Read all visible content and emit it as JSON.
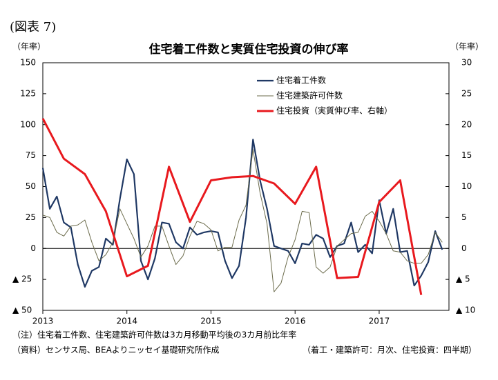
{
  "chart_data": {
    "type": "line",
    "figure_label": "(図表 7)",
    "title": "住宅着工件数と実質住宅投資の伸び率",
    "y_label": "（年率）",
    "y2_label": "（年率）",
    "notes": [
      "（注）住宅着工件数、住宅建築許可件数は3カ月移動平均後の3カ月前比年率",
      "（資料）センサス局、BEAよりニッセイ基礎研究所作成"
    ],
    "frequency_note": "（着工・建築許可：月次、住宅投資：四半期）",
    "xlim": [
      2013,
      2017.83
    ],
    "xticks": [
      2013,
      2014,
      2015,
      2016,
      2017
    ],
    "ylim": [
      -50,
      150
    ],
    "yticks": [
      150,
      125,
      100,
      75,
      50,
      25,
      0,
      {
        "value": -25,
        "label": "▲ 25"
      },
      {
        "value": -50,
        "label": "▲ 50"
      }
    ],
    "y2lim": [
      -10,
      30
    ],
    "y2ticks": [
      30,
      25,
      20,
      15,
      10,
      5,
      0,
      {
        "value": -5,
        "label": "▲ 5"
      },
      {
        "value": -10,
        "label": "▲ 10"
      }
    ],
    "grid": false,
    "legend": "top-right",
    "x": [
      2013,
      2013.0833,
      2013.1667,
      2013.25,
      2013.3333,
      2013.4167,
      2013.5,
      2013.5833,
      2013.6667,
      2013.75,
      2013.8333,
      2013.9167,
      2014,
      2014.0833,
      2014.1667,
      2014.25,
      2014.3333,
      2014.4167,
      2014.5,
      2014.5833,
      2014.6667,
      2014.75,
      2014.8333,
      2014.9167,
      2015,
      2015.0833,
      2015.1667,
      2015.25,
      2015.3333,
      2015.4167,
      2015.5,
      2015.5833,
      2015.6667,
      2015.75,
      2015.8333,
      2015.9167,
      2016,
      2016.0833,
      2016.1667,
      2016.25,
      2016.3333,
      2016.4167,
      2016.5,
      2016.5833,
      2016.6667,
      2016.75,
      2016.8333,
      2016.9167,
      2017,
      2017.0833,
      2017.1667,
      2017.25,
      2017.3333,
      2017.4167,
      2017.5,
      2017.5833,
      2017.6667,
      2017.75
    ],
    "series": [
      {
        "name": "住宅着工件数",
        "color": "#1f3864",
        "width": 2.2,
        "values": [
          65,
          32,
          42,
          21,
          17,
          -13,
          -31,
          -18,
          -15,
          8,
          3,
          40,
          72,
          60,
          -10,
          -25,
          -8,
          21,
          20,
          5,
          0,
          17,
          11,
          13,
          14,
          13,
          -10,
          -24,
          -14,
          25,
          88,
          55,
          32,
          2,
          0,
          -2,
          -12,
          4,
          3,
          11,
          8,
          -7,
          2,
          4,
          21,
          -3,
          3,
          -4,
          39,
          12,
          32,
          -3,
          -2,
          -30,
          -22,
          -11,
          14,
          -1
        ]
      },
      {
        "name": "住宅建築許可件数",
        "color": "#6b6b4b",
        "width": 1,
        "values": [
          27,
          25,
          13,
          10,
          18,
          19,
          23,
          5,
          -10,
          -5,
          5,
          32,
          20,
          8,
          -7,
          2,
          18,
          18,
          2,
          -13,
          -6,
          10,
          22,
          20,
          15,
          -2,
          1,
          1,
          23,
          35,
          80,
          45,
          20,
          -35,
          -28,
          -7,
          7,
          30,
          29,
          -15,
          -20,
          -15,
          2,
          7,
          12,
          13,
          26,
          30,
          22,
          12,
          -2,
          -3,
          -10,
          -12,
          -12,
          -5,
          13,
          5
        ]
      },
      {
        "name": "住宅投資（実質伸び率、右軸）",
        "color": "#e8191e",
        "width": 3,
        "axis": "y2",
        "x": [
          2013,
          2013.25,
          2013.5,
          2013.75,
          2014,
          2014.25,
          2014.5,
          2014.75,
          2015,
          2015.25,
          2015.5,
          2015.75,
          2016,
          2016.25,
          2016.5,
          2016.75,
          2017,
          2017.25,
          2017.5
        ],
        "values": [
          21,
          14.5,
          12,
          6,
          -4.5,
          -2.8,
          13.2,
          4.3,
          11,
          11.5,
          11.7,
          10.5,
          7.2,
          13.2,
          -4.8,
          -4.6,
          7.5,
          11,
          -7.5
        ]
      }
    ]
  }
}
